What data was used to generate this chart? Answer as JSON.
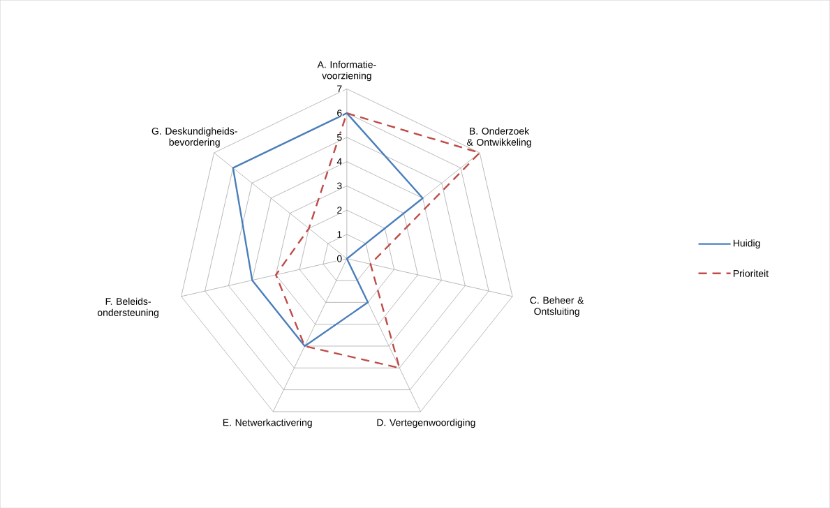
{
  "chart_data": {
    "type": "radar",
    "categories": [
      "A. Informatie-voorziening",
      "B. Onderzoek & Ontwikkeling",
      "C. Beheer & Ontsluiting",
      "D. Vertegenwoordiging",
      "E. Netwerkactivering",
      "F. Beleids-ondersteuning",
      "G. Deskundigheids-bevordering"
    ],
    "series": [
      {
        "name": "Huidig",
        "color": "#4a7ebb",
        "line_style": "solid",
        "values": [
          6,
          4,
          0,
          2,
          4,
          4,
          6
        ]
      },
      {
        "name": "Prioriteit",
        "color": "#be4b48",
        "line_style": "dashed",
        "values": [
          6,
          7,
          1,
          5,
          4,
          3,
          2
        ]
      }
    ],
    "ylim": [
      0,
      7
    ],
    "yticks": [
      0,
      1,
      2,
      3,
      4,
      5,
      6,
      7
    ],
    "grid": true,
    "legend": "right",
    "marker": "none"
  }
}
